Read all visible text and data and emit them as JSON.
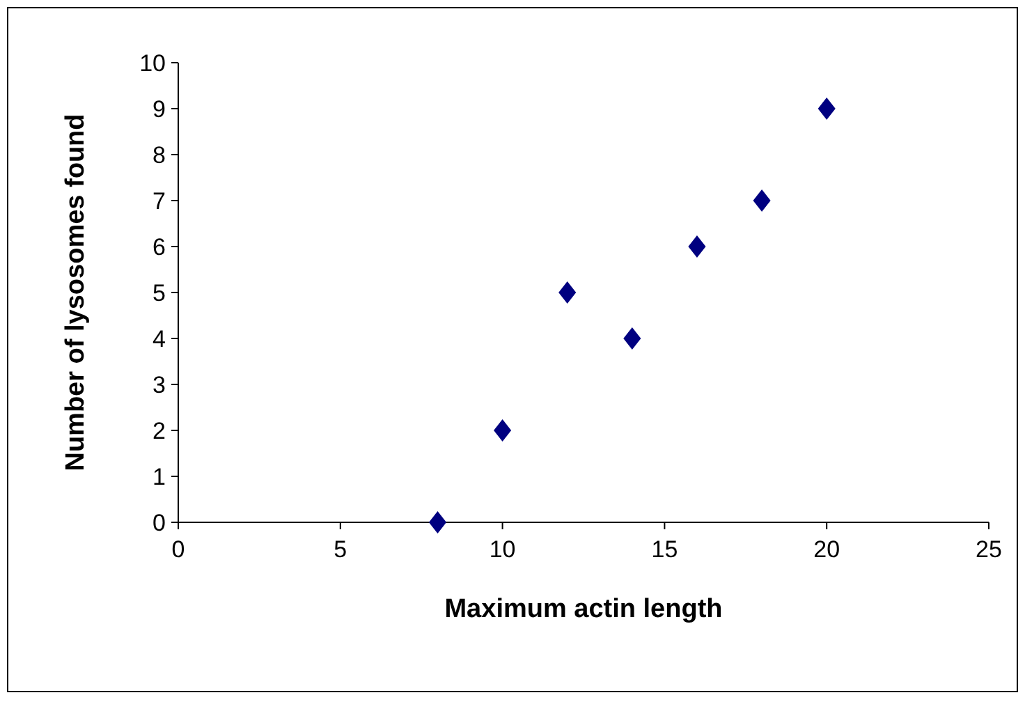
{
  "chart_data": {
    "type": "scatter",
    "xlabel": "Maximum actin length",
    "ylabel": "Number of lysosomes found",
    "x": [
      8,
      10,
      12,
      14,
      16,
      18,
      20
    ],
    "series": [
      {
        "color": "#000080",
        "values": [
          0,
          2,
          5,
          4,
          6,
          7,
          9
        ]
      }
    ],
    "xlim": [
      0,
      25
    ],
    "xticks": [
      0,
      5,
      10,
      15,
      20,
      25
    ],
    "ylim": [
      0,
      10
    ],
    "yticks": [
      0,
      1,
      2,
      3,
      4,
      5,
      6,
      7,
      8,
      9,
      10
    ],
    "marker": "diamond",
    "grid": false
  }
}
